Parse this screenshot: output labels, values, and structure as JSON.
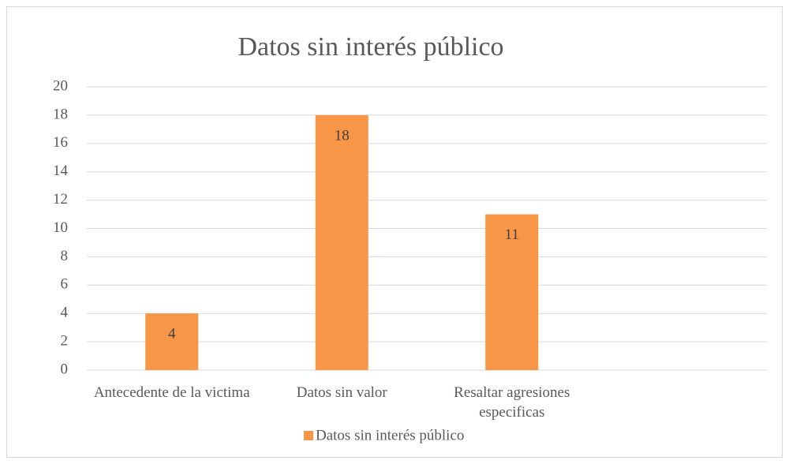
{
  "chart_data": {
    "type": "bar",
    "title": "Datos sin interés público",
    "categories": [
      "Antecedente de la victima",
      "Datos sin valor",
      "Resaltar agresiones especificas",
      null
    ],
    "series": [
      {
        "name": "Datos sin interés público",
        "color": "#f79646",
        "values": [
          4,
          18,
          11,
          null
        ]
      }
    ],
    "ylim": [
      0,
      20
    ],
    "yticks": [
      0,
      2,
      4,
      6,
      8,
      10,
      12,
      14,
      16,
      18,
      20
    ],
    "grid": true,
    "legend": "bottom"
  }
}
